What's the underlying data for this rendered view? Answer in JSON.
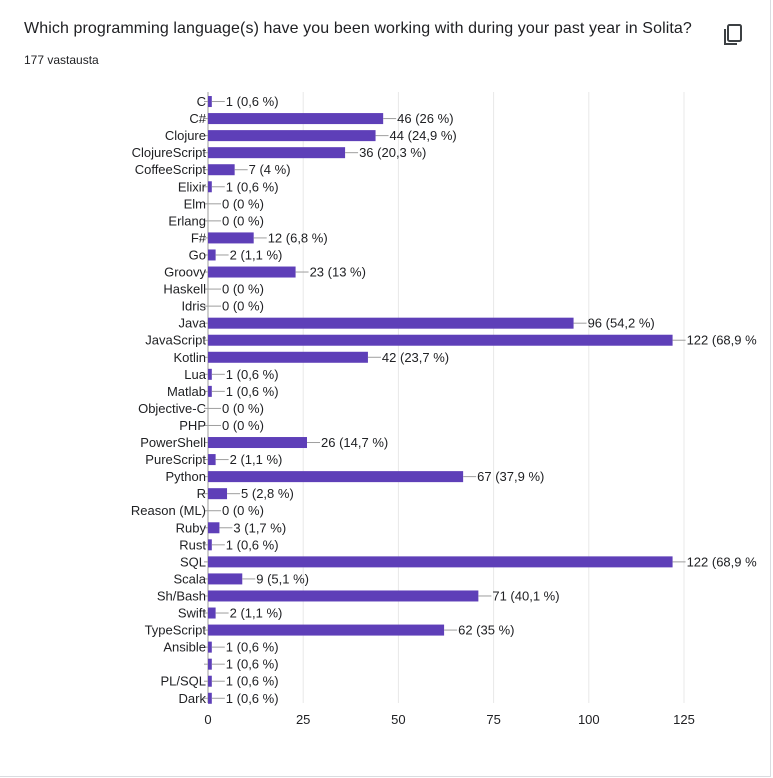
{
  "question": {
    "title": "Which programming language(s) have you been working with during your past year in Solita?",
    "response_count": "177 vastausta"
  },
  "icons": {
    "copy": "copy-icon"
  },
  "colors": {
    "bar": "#5e3fb8",
    "grid": "#e8e8e8",
    "axis": "#9e9e9e",
    "text": "#202124"
  },
  "chart_data": {
    "type": "bar",
    "orientation": "horizontal",
    "title": "",
    "xlabel": "",
    "ylabel": "",
    "xlim": [
      0,
      125
    ],
    "xticks": [
      0,
      25,
      50,
      75,
      100,
      125
    ],
    "grid": true,
    "categories": [
      "C",
      "C#",
      "Clojure",
      "ClojureScript",
      "CoffeeScript",
      "Elixir",
      "Elm",
      "Erlang",
      "F#",
      "Go",
      "Groovy",
      "Haskell",
      "Idris",
      "Java",
      "JavaScript",
      "Kotlin",
      "Lua",
      "Matlab",
      "Objective-C",
      "PHP",
      "PowerShell",
      "PureScript",
      "Python",
      "R",
      "Reason (ML)",
      "Ruby",
      "Rust",
      "SQL",
      "Scala",
      "Sh/Bash",
      "Swift",
      "TypeScript",
      "Ansible",
      "",
      "PL/SQL",
      "Dark"
    ],
    "values": [
      1,
      46,
      44,
      36,
      7,
      1,
      0,
      0,
      12,
      2,
      23,
      0,
      0,
      96,
      122,
      42,
      1,
      1,
      0,
      0,
      26,
      2,
      67,
      5,
      0,
      3,
      1,
      122,
      9,
      71,
      2,
      62,
      1,
      1,
      1,
      1
    ],
    "data_labels": [
      "1 (0,6 %)",
      "46 (26 %)",
      "44 (24,9 %)",
      "36 (20,3 %)",
      "7 (4 %)",
      "1 (0,6 %)",
      "0 (0 %)",
      "0 (0 %)",
      "12 (6,8 %)",
      "2 (1,1 %)",
      "23 (13 %)",
      "0 (0 %)",
      "0 (0 %)",
      "96 (54,2 %)",
      "122 (68,9 %",
      "42 (23,7 %)",
      "1 (0,6 %)",
      "1 (0,6 %)",
      "0 (0 %)",
      "0 (0 %)",
      "26 (14,7 %)",
      "2 (1,1 %)",
      "67 (37,9 %)",
      "5 (2,8 %)",
      "0 (0 %)",
      "3 (1,7 %)",
      "1 (0,6 %)",
      "122 (68,9 %",
      "9 (5,1 %)",
      "71 (40,1 %)",
      "2 (1,1 %)",
      "62 (35 %)",
      "1 (0,6 %)",
      "1 (0,6 %)",
      "1 (0,6 %)",
      "1 (0,6 %)"
    ]
  }
}
